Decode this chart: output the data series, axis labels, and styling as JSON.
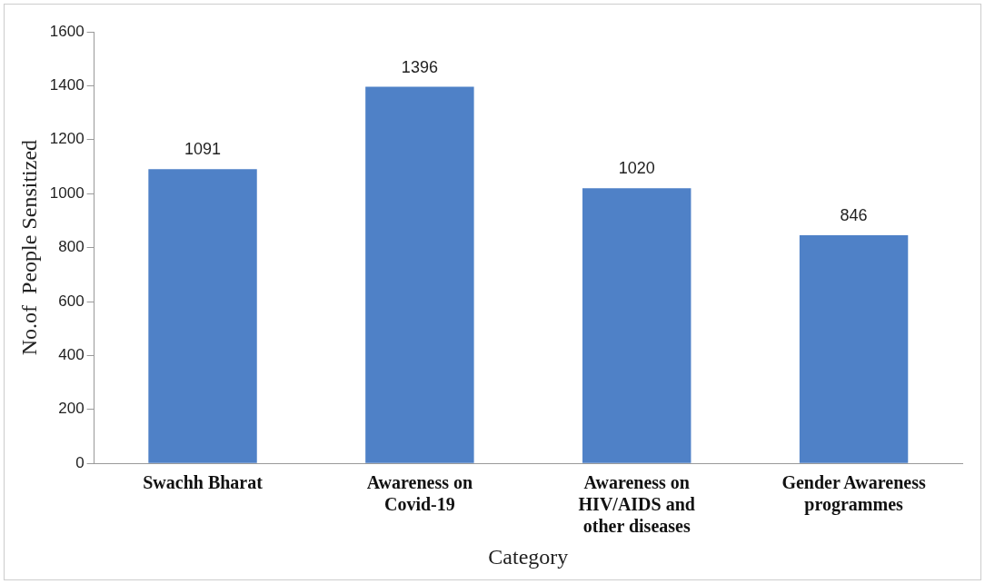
{
  "chart_data": {
    "type": "bar",
    "xlabel": "Category",
    "ylabel": "No.of  People Sensitized",
    "categories": [
      "Swachh Bharat",
      "Awareness on Covid-19",
      "Awareness on HIV/AIDS and other diseases",
      "Gender Awareness programmes"
    ],
    "values": [
      1091,
      1396,
      1020,
      846
    ],
    "color": "#4f81c7",
    "ylim": [
      0,
      1600
    ],
    "yticks": [
      0,
      200,
      400,
      600,
      800,
      1000,
      1200,
      1400,
      1600
    ],
    "grid": false,
    "legend": false,
    "data_labels": true
  }
}
